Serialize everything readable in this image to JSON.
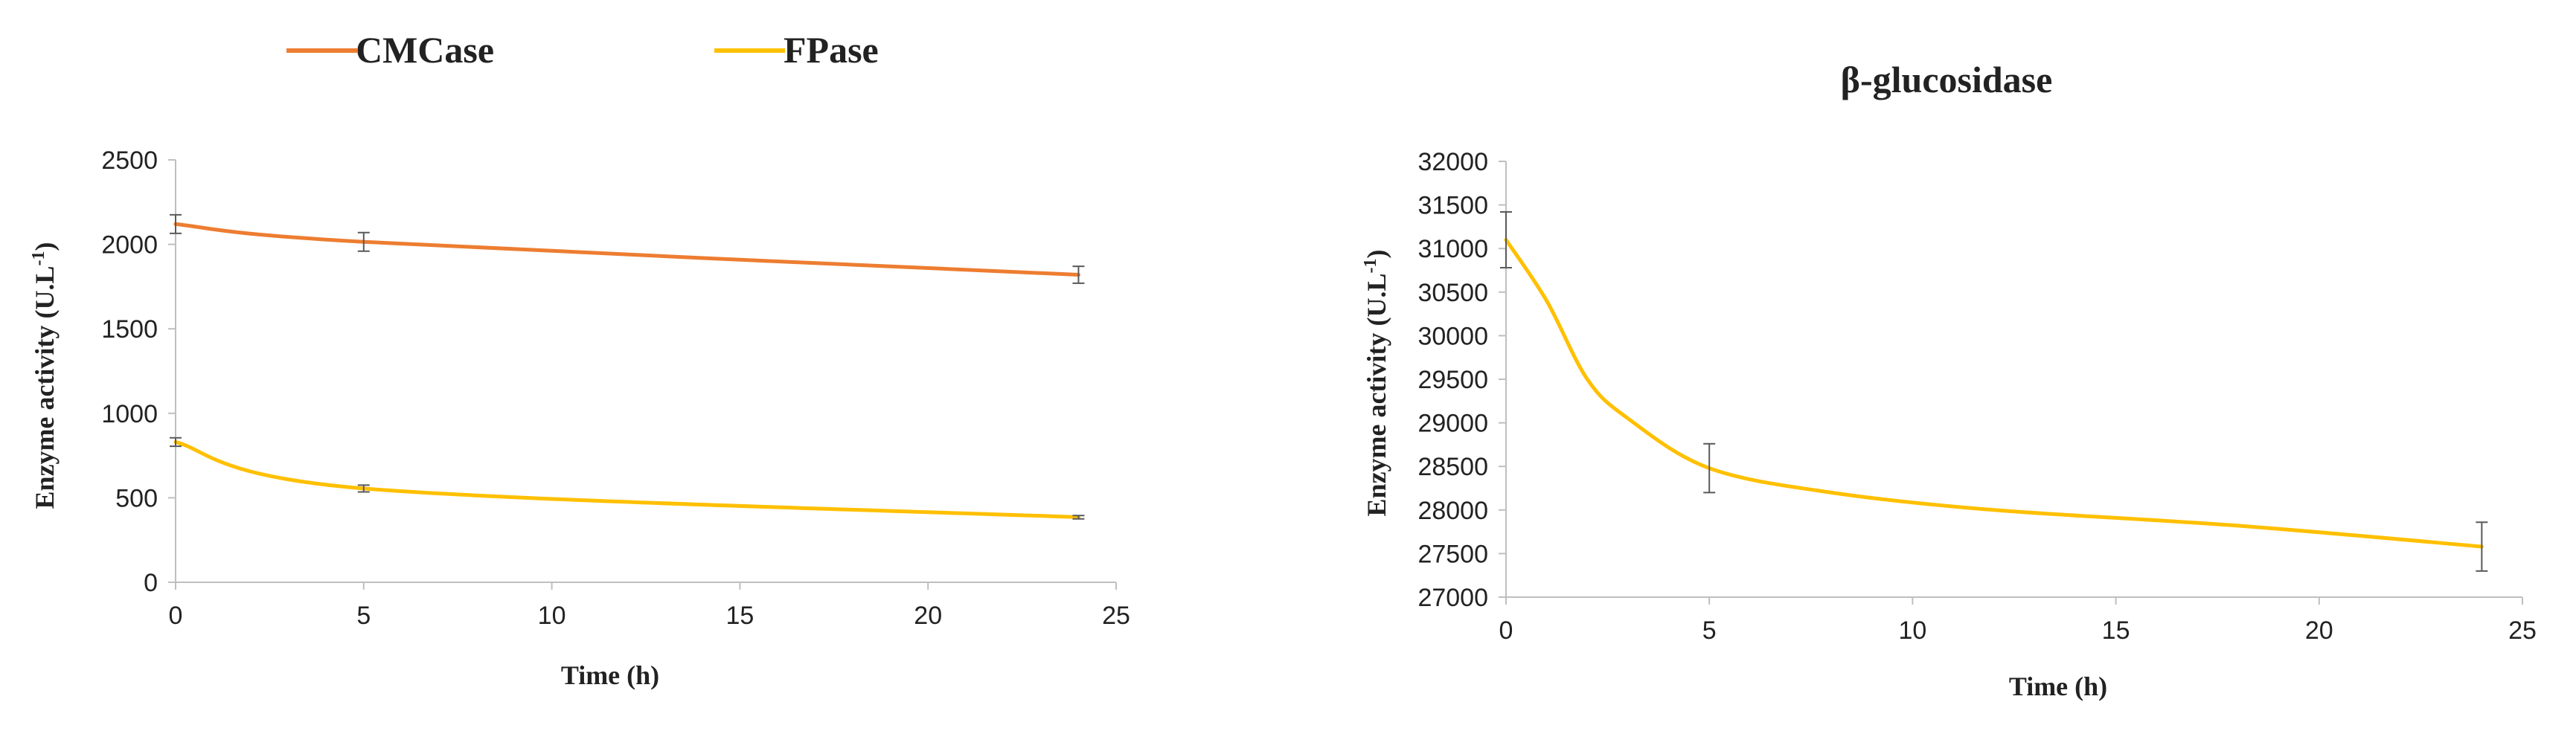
{
  "colors": {
    "cmcase": "#ED7D31",
    "fpase": "#FFC000",
    "axis": "#BFBFBF",
    "error_bar": "#595959",
    "text": "#222222"
  },
  "legend": {
    "items": [
      {
        "label": "CMCase",
        "color": "#ED7D31"
      },
      {
        "label": "FPase",
        "color": "#FFC000"
      }
    ]
  },
  "chart_data": [
    {
      "type": "line",
      "title": "",
      "xlabel": "Time (h)",
      "ylabel": "Enzyme activity (U.L",
      "ylabel_sup": "-1",
      "ylabel_tail": ")",
      "xlim": [
        0,
        25
      ],
      "ylim": [
        0,
        2500
      ],
      "xticks": [
        0,
        5,
        10,
        15,
        20,
        25
      ],
      "yticks": [
        0,
        500,
        1000,
        1500,
        2000,
        2500
      ],
      "smooth": true,
      "grid": false,
      "legend_position": "top-left",
      "series": [
        {
          "name": "CMCase",
          "color": "#ED7D31",
          "x": [
            0,
            5,
            24
          ],
          "y": [
            2120,
            2015,
            1820
          ],
          "error": [
            55,
            55,
            50
          ]
        },
        {
          "name": "FPase",
          "color": "#FFC000",
          "x": [
            0,
            5,
            24
          ],
          "y": [
            830,
            555,
            385
          ],
          "error": [
            25,
            20,
            10
          ]
        }
      ]
    },
    {
      "type": "line",
      "title": "β-glucosidase",
      "xlabel": "Time (h)",
      "ylabel": "Enzyme activity (U.L",
      "ylabel_sup": "-1",
      "ylabel_tail": ")",
      "xlim": [
        0,
        25
      ],
      "ylim": [
        27000,
        32000
      ],
      "xticks": [
        0,
        5,
        10,
        15,
        20,
        25
      ],
      "yticks": [
        27000,
        27500,
        28000,
        28500,
        29000,
        29500,
        30000,
        30500,
        31000,
        31500,
        32000
      ],
      "smooth": true,
      "grid": false,
      "series": [
        {
          "color": "#FFC000",
          "x": [
            0,
            1,
            2,
            3,
            5,
            8,
            12,
            18,
            24
          ],
          "y": [
            31100,
            30400,
            29500,
            29050,
            28480,
            28200,
            28000,
            27820,
            27580
          ],
          "error": [
            320,
            0,
            0,
            0,
            280,
            0,
            0,
            0,
            280
          ]
        }
      ]
    }
  ]
}
